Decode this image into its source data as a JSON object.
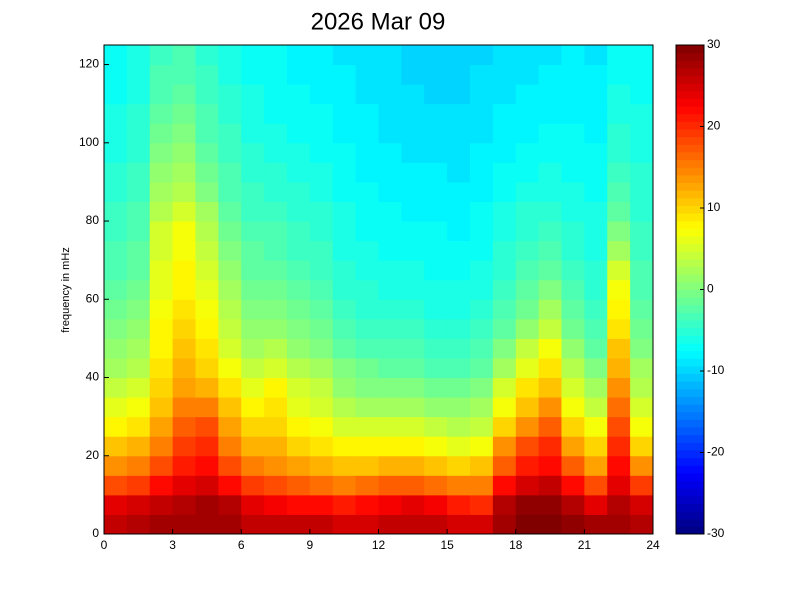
{
  "chart_data": {
    "type": "heatmap",
    "title": "2026 Mar 09",
    "y_label": "frequency in mHz",
    "colormap": "jet",
    "x": [
      0.5,
      1.5,
      2.5,
      3.5,
      4.5,
      5.5,
      6.5,
      7.5,
      8.5,
      9.5,
      10.5,
      11.5,
      12.5,
      13.5,
      14.5,
      15.5,
      16.5,
      17.5,
      18.5,
      19.5,
      20.5,
      21.5,
      22.5,
      23.5
    ],
    "y": [
      2.5,
      7.5,
      12.5,
      17.5,
      22.5,
      27.5,
      32.5,
      37.5,
      42.5,
      47.5,
      52.5,
      57.5,
      62.5,
      67.5,
      72.5,
      77.5,
      82.5,
      87.5,
      92.5,
      97.5,
      102.5,
      107.5,
      112.5,
      117.5,
      122.5
    ],
    "z": [
      [
        26,
        27,
        28,
        28,
        28,
        28,
        26,
        26,
        26,
        26,
        25,
        25,
        26,
        26,
        26,
        25,
        25,
        28,
        30,
        30,
        29,
        28,
        28,
        27
      ],
      [
        24,
        25,
        26,
        27,
        28,
        27,
        24,
        23,
        22,
        22,
        21,
        22,
        23,
        24,
        23,
        21,
        20,
        27,
        29,
        29,
        27,
        24,
        27,
        25
      ],
      [
        18,
        19,
        22,
        24,
        25,
        22,
        19,
        18,
        17,
        16,
        15,
        16,
        17,
        17,
        16,
        15,
        15,
        22,
        25,
        26,
        22,
        18,
        24,
        19
      ],
      [
        14,
        15,
        18,
        21,
        22,
        18,
        15,
        14,
        13,
        12,
        11,
        11,
        12,
        12,
        11,
        10,
        11,
        17,
        21,
        22,
        17,
        13,
        22,
        14
      ],
      [
        11,
        12,
        15,
        19,
        20,
        15,
        12,
        12,
        10,
        9,
        8,
        8,
        8,
        8,
        7,
        6,
        7,
        14,
        18,
        20,
        13,
        10,
        20,
        10
      ],
      [
        8,
        9,
        13,
        17,
        18,
        13,
        10,
        10,
        8,
        7,
        5,
        5,
        5,
        5,
        4,
        3,
        4,
        10,
        14,
        17,
        10,
        7,
        18,
        7
      ],
      [
        6,
        7,
        11,
        15,
        15,
        11,
        8,
        9,
        6,
        5,
        3,
        2,
        2,
        2,
        1,
        1,
        2,
        7,
        11,
        14,
        7,
        4,
        16,
        5
      ],
      [
        4,
        5,
        10,
        13,
        12,
        9,
        6,
        8,
        5,
        4,
        1,
        0,
        0,
        0,
        -1,
        -1,
        0,
        5,
        9,
        11,
        5,
        2,
        14,
        3
      ],
      [
        2,
        3,
        9,
        12,
        10,
        7,
        4,
        5,
        3,
        2,
        0,
        -1,
        -2,
        -2,
        -3,
        -3,
        -2,
        2,
        6,
        9,
        3,
        0,
        12,
        2
      ],
      [
        1,
        2,
        8,
        11,
        9,
        5,
        2,
        3,
        1,
        0,
        -2,
        -3,
        -3,
        -3,
        -4,
        -4,
        -3,
        0,
        4,
        7,
        1,
        -2,
        11,
        0
      ],
      [
        0,
        1,
        8,
        10,
        8,
        4,
        1,
        1,
        0,
        -1,
        -3,
        -4,
        -4,
        -4,
        -5,
        -5,
        -4,
        -2,
        1,
        4,
        -1,
        -3,
        9,
        -1
      ],
      [
        -1,
        0,
        7,
        9,
        7,
        3,
        0,
        0,
        -1,
        -2,
        -4,
        -5,
        -5,
        -5,
        -6,
        -6,
        -5,
        -3,
        -1,
        2,
        -2,
        -4,
        8,
        -2
      ],
      [
        -2,
        -1,
        6,
        8,
        6,
        2,
        -1,
        -1,
        -2,
        -3,
        -5,
        -5,
        -6,
        -6,
        -6,
        -6,
        -6,
        -4,
        -2,
        0,
        -3,
        -5,
        7,
        -3
      ],
      [
        -3,
        -2,
        6,
        8,
        5,
        1,
        -2,
        -2,
        -3,
        -4,
        -5,
        -6,
        -6,
        -6,
        -7,
        -7,
        -6,
        -5,
        -3,
        -2,
        -4,
        -5,
        5,
        -3
      ],
      [
        -3,
        -2,
        5,
        7,
        4,
        0,
        -2,
        -3,
        -4,
        -4,
        -6,
        -6,
        -7,
        -7,
        -7,
        -7,
        -7,
        -5,
        -4,
        -3,
        -5,
        -6,
        2,
        -4
      ],
      [
        -4,
        -3,
        5,
        7,
        3,
        -1,
        -3,
        -3,
        -4,
        -5,
        -6,
        -7,
        -7,
        -7,
        -7,
        -8,
        -7,
        -6,
        -5,
        -4,
        -5,
        -6,
        0,
        -4
      ],
      [
        -4,
        -3,
        3,
        5,
        2,
        -2,
        -4,
        -4,
        -5,
        -5,
        -6,
        -7,
        -7,
        -8,
        -8,
        -8,
        -7,
        -6,
        -5,
        -5,
        -6,
        -6,
        -2,
        -5
      ],
      [
        -5,
        -4,
        2,
        3,
        0,
        -3,
        -4,
        -5,
        -5,
        -6,
        -7,
        -7,
        -8,
        -8,
        -8,
        -8,
        -8,
        -7,
        -6,
        -6,
        -6,
        -7,
        -3,
        -5
      ],
      [
        -5,
        -4,
        1,
        2,
        -1,
        -3,
        -5,
        -5,
        -6,
        -6,
        -7,
        -8,
        -8,
        -8,
        -8,
        -9,
        -8,
        -7,
        -7,
        -6,
        -7,
        -7,
        -4,
        -5
      ],
      [
        -6,
        -5,
        0,
        1,
        -2,
        -4,
        -5,
        -6,
        -6,
        -7,
        -7,
        -8,
        -8,
        -9,
        -9,
        -9,
        -8,
        -8,
        -7,
        -7,
        -7,
        -7,
        -5,
        -6
      ],
      [
        -6,
        -5,
        -1,
        0,
        -3,
        -4,
        -6,
        -6,
        -7,
        -7,
        -8,
        -8,
        -9,
        -9,
        -9,
        -9,
        -9,
        -8,
        -8,
        -7,
        -7,
        -8,
        -5,
        -6
      ],
      [
        -6,
        -5,
        -2,
        -1,
        -3,
        -5,
        -6,
        -7,
        -7,
        -7,
        -8,
        -8,
        -9,
        -9,
        -9,
        -9,
        -9,
        -8,
        -8,
        -8,
        -8,
        -8,
        -6,
        -6
      ],
      [
        -7,
        -6,
        -3,
        -2,
        -4,
        -5,
        -6,
        -7,
        -7,
        -8,
        -8,
        -9,
        -9,
        -9,
        -10,
        -10,
        -9,
        -9,
        -8,
        -8,
        -8,
        -8,
        -6,
        -7
      ],
      [
        -7,
        -6,
        -3,
        -3,
        -4,
        -6,
        -7,
        -7,
        -8,
        -8,
        -8,
        -9,
        -9,
        -10,
        -10,
        -10,
        -9,
        -9,
        -9,
        -8,
        -8,
        -8,
        -7,
        -7
      ],
      [
        -7,
        -6,
        -4,
        -3,
        -5,
        -6,
        -7,
        -7,
        -8,
        -8,
        -9,
        -9,
        -9,
        -10,
        -10,
        -10,
        -10,
        -9,
        -9,
        -9,
        -8,
        -9,
        -7,
        -7
      ]
    ],
    "xlim": [
      0,
      24
    ],
    "xticks": [
      0,
      3,
      6,
      9,
      12,
      15,
      18,
      21,
      24
    ],
    "ylim": [
      0,
      125
    ],
    "yticks": [
      0,
      20,
      40,
      60,
      80,
      100,
      120
    ],
    "clim": [
      -30,
      30
    ],
    "cticks": [
      -30,
      -20,
      -10,
      0,
      10,
      20,
      30
    ]
  }
}
